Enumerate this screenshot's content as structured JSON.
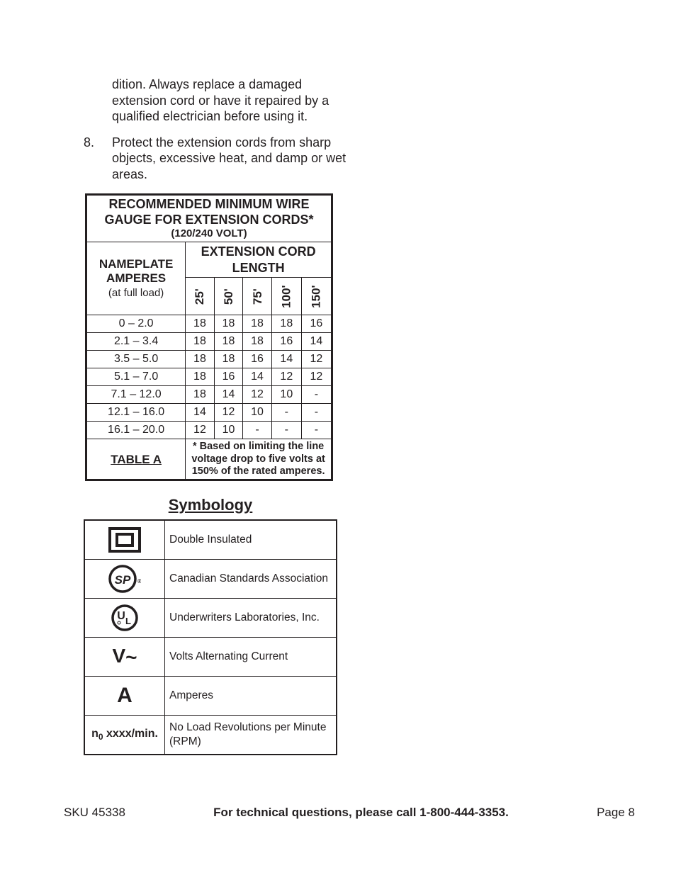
{
  "intro": {
    "continued": "dition.  Always replace a damaged extension cord or have it repaired by a qualified electrician before using it.",
    "item8_num": "8.",
    "item8_text": "Protect the extension cords from sharp objects, excessive heat, and damp or wet areas."
  },
  "wire_table": {
    "title_line1": "RECOMMENDED MINIMUM WIRE",
    "title_line2": "GAUGE FOR EXTENSION CORDS*",
    "title_line3": "(120/240 VOLT)",
    "nameplate_line1": "NAMEPLATE",
    "nameplate_line2": "AMPERES",
    "nameplate_line3": "(at full load)",
    "ecl_header": "EXTENSION CORD LENGTH",
    "lengths": [
      "25'",
      "50'",
      "75'",
      "100'",
      "150'"
    ],
    "rows": [
      {
        "range": "0 – 2.0",
        "vals": [
          "18",
          "18",
          "18",
          "18",
          "16"
        ]
      },
      {
        "range": "2.1 – 3.4",
        "vals": [
          "18",
          "18",
          "18",
          "16",
          "14"
        ]
      },
      {
        "range": "3.5 – 5.0",
        "vals": [
          "18",
          "18",
          "16",
          "14",
          "12"
        ]
      },
      {
        "range": "5.1 – 7.0",
        "vals": [
          "18",
          "16",
          "14",
          "12",
          "12"
        ]
      },
      {
        "range": "7.1 – 12.0",
        "vals": [
          "18",
          "14",
          "12",
          "10",
          "-"
        ]
      },
      {
        "range": "12.1 – 16.0",
        "vals": [
          "14",
          "12",
          "10",
          "-",
          "-"
        ]
      },
      {
        "range": "16.1 – 20.0",
        "vals": [
          "12",
          "10",
          "-",
          "-",
          "-"
        ]
      }
    ],
    "footer_label": "TABLE A",
    "footer_note": "* Based on limiting the line voltage drop to five volts at 150% of the rated amperes.",
    "border_color": "#231f20",
    "text_color": "#231f20",
    "title_fontsize": 18,
    "header_fontsize": 17,
    "cell_fontsize": 16
  },
  "symbology": {
    "heading": "Symbology",
    "rows": [
      {
        "symbol": "double-insulated",
        "desc": "Double Insulated"
      },
      {
        "symbol": "csa",
        "desc": "Canadian Standards Association"
      },
      {
        "symbol": "ul",
        "desc": "Underwriters Laboratories, Inc."
      },
      {
        "symbol": "vac",
        "desc": "Volts Alternating Current"
      },
      {
        "symbol": "amperes",
        "desc": "Amperes"
      },
      {
        "symbol": "rpm",
        "desc": "No Load Revolutions per Minute (RPM)"
      }
    ],
    "border_color": "#231f20",
    "heading_fontsize": 22,
    "cell_fontsize": 15.5
  },
  "symbol_text": {
    "vac": "V~",
    "amperes": "A",
    "rpm_prefix": "n",
    "rpm_sub": "0",
    "rpm_suffix": " xxxx/min.",
    "csa": "SP",
    "ul_u": "U",
    "ul_l": "L"
  },
  "footer": {
    "left": "SKU 45338",
    "mid": "For technical questions, please call 1-800-444-3353.",
    "right": "Page 8"
  },
  "colors": {
    "text": "#231f20",
    "background": "#ffffff"
  }
}
